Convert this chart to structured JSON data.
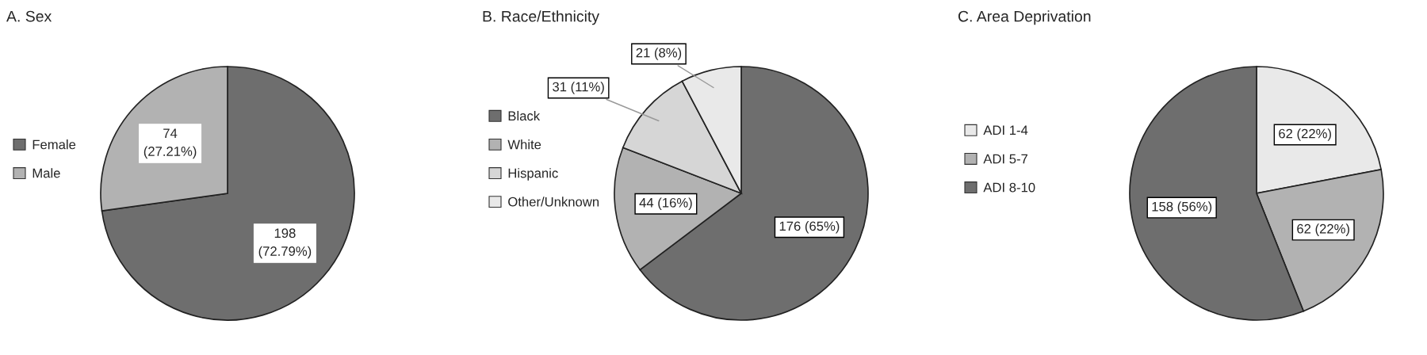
{
  "chart_data": [
    {
      "type": "pie",
      "title": "A. Sex",
      "categories": [
        "Female",
        "Male"
      ],
      "values": [
        198,
        74
      ],
      "colors": [
        "#6e6e6e",
        "#b2b2b2"
      ],
      "value_labels": [
        "198\n(72.79%)",
        "74\n(27.21%)"
      ],
      "legend": "left"
    },
    {
      "type": "pie",
      "title": "B. Race/Ethnicity",
      "categories": [
        "Black",
        "White",
        "Hispanic",
        "Other/Unknown"
      ],
      "values": [
        176,
        44,
        31,
        21
      ],
      "colors": [
        "#6e6e6e",
        "#b2b2b2",
        "#d6d6d6",
        "#e9e9e9"
      ],
      "value_labels": [
        "176 (65%)",
        "44 (16%)",
        "31 (11%)",
        "21 (8%)"
      ],
      "legend": "left"
    },
    {
      "type": "pie",
      "title": "C. Area Deprivation",
      "categories": [
        "ADI 1-4",
        "ADI 5-7",
        "ADI 8-10"
      ],
      "values": [
        62,
        62,
        158
      ],
      "colors": [
        "#e9e9e9",
        "#b2b2b2",
        "#6e6e6e"
      ],
      "value_labels": [
        "62 (22%)",
        "62 (22%)",
        "158 (56%)"
      ],
      "legend": "left"
    }
  ]
}
